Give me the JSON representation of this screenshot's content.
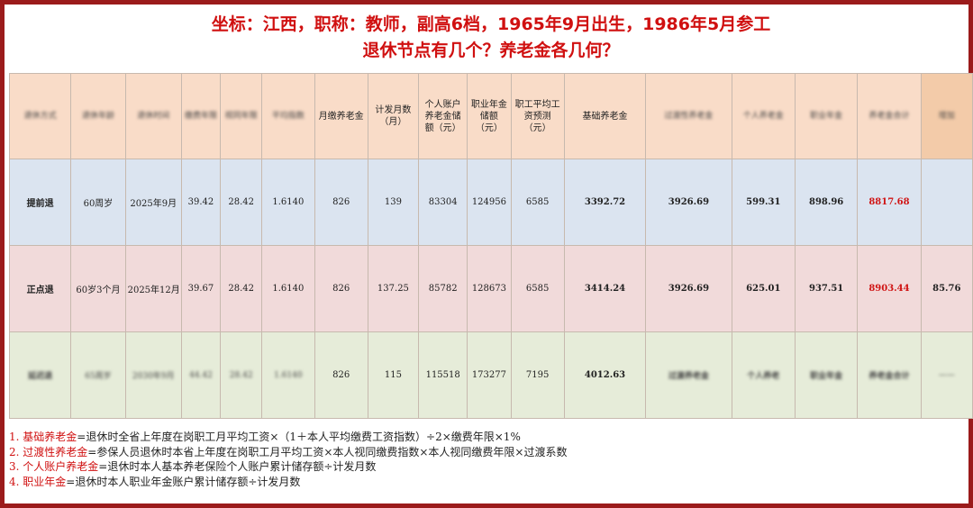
{
  "title": {
    "line1": "坐标：江西，职称：教师，副高6档，1965年9月出生，1986年5月参工",
    "line2": "退休节点有几个？养老金各几何？"
  },
  "table": {
    "headers": [
      {
        "text": "退休方式",
        "blurred": true
      },
      {
        "text": "退休年龄",
        "blurred": true
      },
      {
        "text": "退休时间",
        "blurred": true
      },
      {
        "text": "缴费年限",
        "blurred": true
      },
      {
        "text": "视同年限",
        "blurred": true
      },
      {
        "text": "平均指数",
        "blurred": true
      },
      {
        "text": "月缴养老金",
        "blurred": false
      },
      {
        "text": "计发月数（月）",
        "blurred": false
      },
      {
        "text": "个人账户养老金储额（元）",
        "blurred": false
      },
      {
        "text": "职业年金储额（元）",
        "blurred": false
      },
      {
        "text": "职工平均工资预测（元）",
        "blurred": false
      },
      {
        "text": "基础养老金",
        "blurred": false
      },
      {
        "text": "过渡性养老金",
        "blurred": true
      },
      {
        "text": "个人养老金",
        "blurred": true
      },
      {
        "text": "职业年金",
        "blurred": true
      },
      {
        "text": "养老金合计",
        "blurred": true
      },
      {
        "text": "增加",
        "blurred": true
      }
    ],
    "rows": [
      {
        "cells": [
          {
            "text": "提前退",
            "blurred": false,
            "bold": true
          },
          {
            "text": "60周岁",
            "blurred": false
          },
          {
            "text": "2025年9月",
            "blurred": false
          },
          {
            "text": "39.42",
            "blurred": false
          },
          {
            "text": "28.42",
            "blurred": false
          },
          {
            "text": "1.6140",
            "blurred": false
          },
          {
            "text": "826",
            "blurred": false
          },
          {
            "text": "139",
            "blurred": false
          },
          {
            "text": "83304",
            "blurred": false
          },
          {
            "text": "124956",
            "blurred": false
          },
          {
            "text": "6585",
            "blurred": false
          },
          {
            "text": "3392.72",
            "blurred": false,
            "bold": true
          },
          {
            "text": "3926.69",
            "blurred": false,
            "bold": true
          },
          {
            "text": "599.31",
            "blurred": false,
            "bold": true
          },
          {
            "text": "898.96",
            "blurred": false,
            "bold": true
          },
          {
            "text": "8817.68",
            "blurred": false,
            "bold": true,
            "red": true
          },
          {
            "text": "",
            "blurred": false
          }
        ]
      },
      {
        "cells": [
          {
            "text": "正点退",
            "blurred": false,
            "bold": true
          },
          {
            "text": "60岁3个月",
            "blurred": false
          },
          {
            "text": "2025年12月",
            "blurred": false
          },
          {
            "text": "39.67",
            "blurred": false
          },
          {
            "text": "28.42",
            "blurred": false
          },
          {
            "text": "1.6140",
            "blurred": false
          },
          {
            "text": "826",
            "blurred": false
          },
          {
            "text": "137.25",
            "blurred": false
          },
          {
            "text": "85782",
            "blurred": false
          },
          {
            "text": "128673",
            "blurred": false
          },
          {
            "text": "6585",
            "blurred": false
          },
          {
            "text": "3414.24",
            "blurred": false,
            "bold": true
          },
          {
            "text": "3926.69",
            "blurred": false,
            "bold": true
          },
          {
            "text": "625.01",
            "blurred": false,
            "bold": true
          },
          {
            "text": "937.51",
            "blurred": false,
            "bold": true
          },
          {
            "text": "8903.44",
            "blurred": false,
            "bold": true,
            "red": true
          },
          {
            "text": "85.76",
            "blurred": false,
            "bold": true
          }
        ]
      },
      {
        "cells": [
          {
            "text": "延迟退",
            "blurred": true,
            "bold": true
          },
          {
            "text": "65周岁",
            "blurred": true
          },
          {
            "text": "2030年9月",
            "blurred": true
          },
          {
            "text": "44.42",
            "blurred": true
          },
          {
            "text": "28.42",
            "blurred": true
          },
          {
            "text": "1.6140",
            "blurred": true
          },
          {
            "text": "826",
            "blurred": false
          },
          {
            "text": "115",
            "blurred": false
          },
          {
            "text": "115518",
            "blurred": false
          },
          {
            "text": "173277",
            "blurred": false
          },
          {
            "text": "7195",
            "blurred": false
          },
          {
            "text": "4012.63",
            "blurred": false,
            "bold": true
          },
          {
            "text": "过渡养老金",
            "blurred": true,
            "bold": true
          },
          {
            "text": "个人养老",
            "blurred": true,
            "bold": true
          },
          {
            "text": "职业年金",
            "blurred": true,
            "bold": true
          },
          {
            "text": "养老金合计",
            "blurred": true,
            "bold": true
          },
          {
            "text": "——",
            "blurred": true
          }
        ]
      }
    ]
  },
  "notes": [
    {
      "key": "1. 基础养老金",
      "text": "=退休时全省上年度在岗职工月平均工资×（1＋本人平均缴费工资指数）÷2×缴费年限×1%"
    },
    {
      "key": "2. 过渡性养老金",
      "text": "=参保人员退休时本省上年度在岗职工月平均工资×本人视同缴费指数×本人视同缴费年限×过渡系数"
    },
    {
      "key": "3. 个人账户养老金",
      "text": "=退休时本人基本养老保险个人账户累计储存额÷计发月数"
    },
    {
      "key": "4. 职业年金",
      "text": "=退休时本人职业年金账户累计储存额÷计发月数"
    }
  ],
  "colors": {
    "accent": "#d01010",
    "border": "#9b1b1b",
    "header_bg": "#f9dcc8",
    "row1_bg": "#dbe4f0",
    "row2_bg": "#f1dada",
    "row3_bg": "#e6ecd9",
    "last_header_bg": "#f3cba9"
  }
}
